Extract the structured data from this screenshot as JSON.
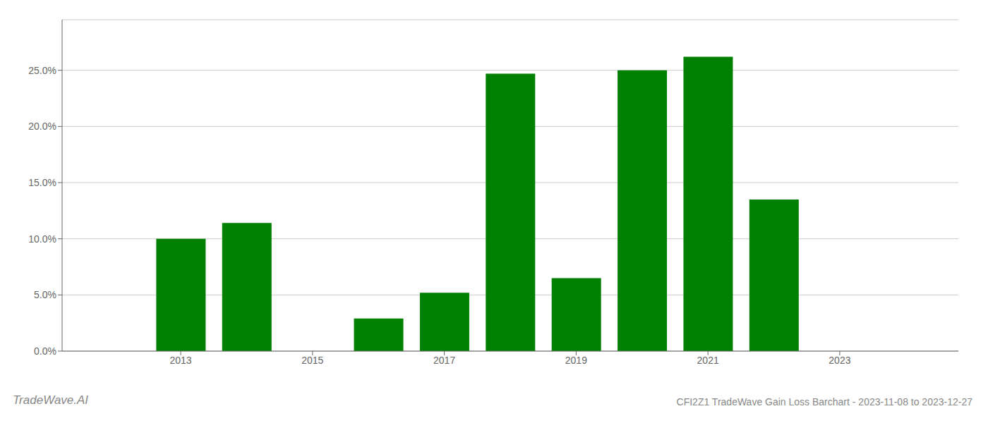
{
  "chart_data": {
    "type": "bar",
    "title": "CFI2Z1 TradeWave Gain Loss Barchart - 2023-11-08 to 2023-12-27",
    "annotations": [
      "TradeWave.AI"
    ],
    "x": [
      2013,
      2014,
      2015,
      2016,
      2017,
      2018,
      2019,
      2020,
      2021,
      2022,
      2023
    ],
    "values": [
      0.1,
      0.114,
      0.0,
      0.029,
      0.052,
      0.247,
      0.065,
      0.25,
      0.262,
      0.135,
      0.0
    ],
    "color": "#008000",
    "xlim": [
      2011.2,
      2024.8
    ],
    "xticks": [
      2013,
      2015,
      2017,
      2019,
      2021,
      2023
    ],
    "ylim": [
      0.0,
      0.295
    ],
    "yticks": [
      {
        "value": 0.0,
        "label": "0.0%"
      },
      {
        "value": 0.05,
        "label": "5.0%"
      },
      {
        "value": 0.1,
        "label": "10.0%"
      },
      {
        "value": 0.15,
        "label": "15.0%"
      },
      {
        "value": 0.2,
        "label": "20.0%"
      },
      {
        "value": 0.25,
        "label": "25.0%"
      }
    ],
    "grid": true
  }
}
